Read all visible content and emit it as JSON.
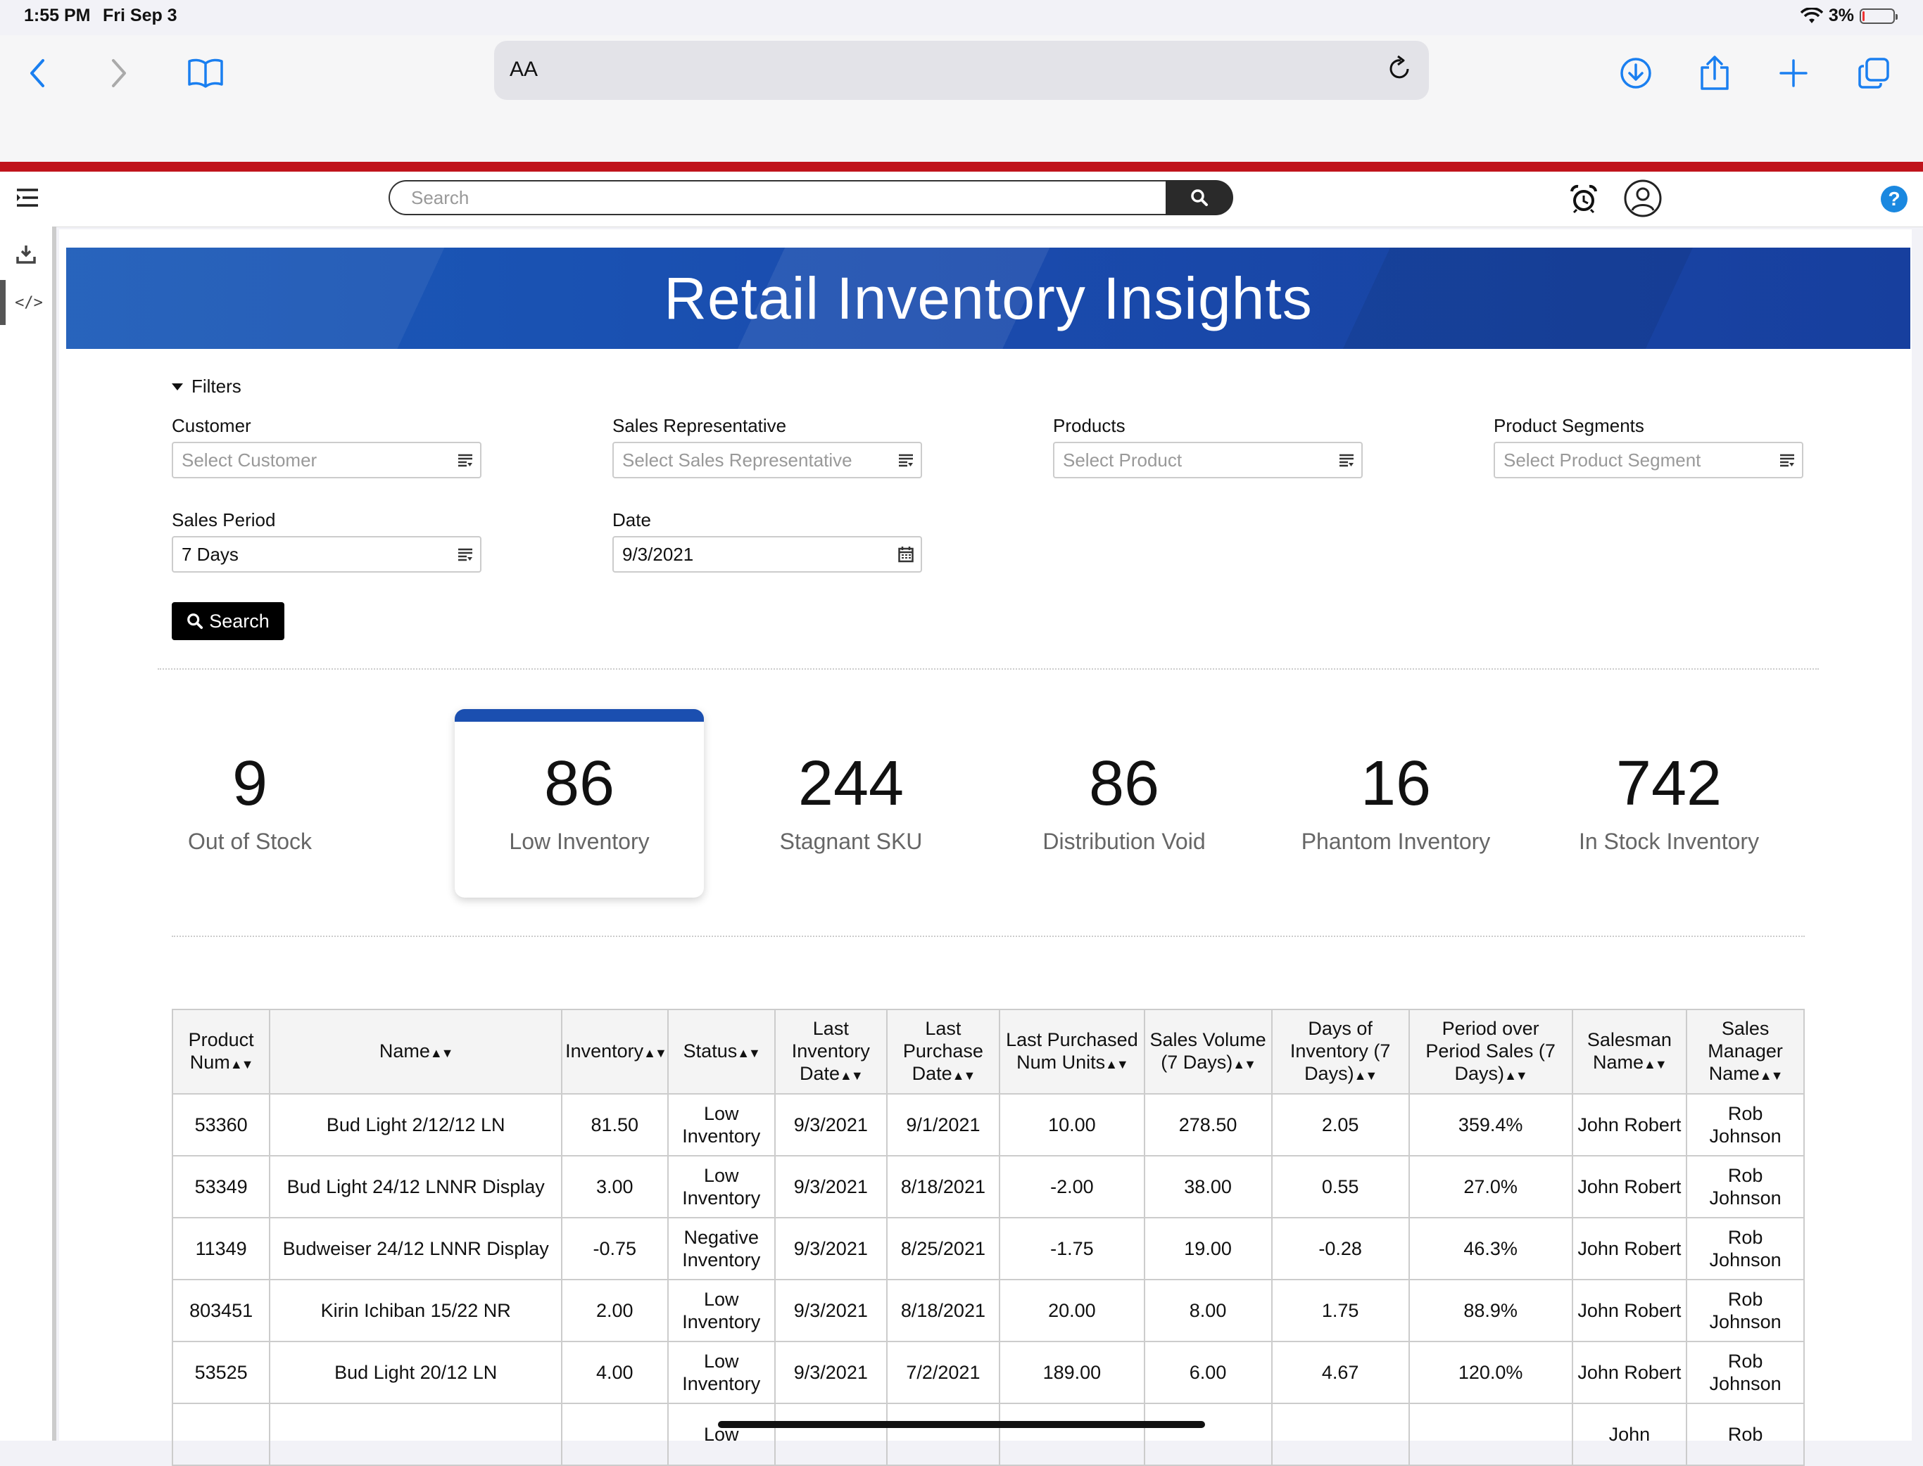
{
  "status_bar": {
    "time": "1:55 PM",
    "date": "Fri Sep 3",
    "battery": "3%"
  },
  "safari": {
    "aa_label": "AA"
  },
  "header": {
    "search_placeholder": "Search"
  },
  "banner": {
    "title": "Retail Inventory Insights"
  },
  "filters": {
    "toggle_label": "Filters",
    "customer": {
      "label": "Customer",
      "placeholder": "Select Customer"
    },
    "sales_rep": {
      "label": "Sales Representative",
      "placeholder": "Select Sales Representative"
    },
    "products": {
      "label": "Products",
      "placeholder": "Select Product"
    },
    "segments": {
      "label": "Product Segments",
      "placeholder": "Select Product Segment"
    },
    "sales_period": {
      "label": "Sales Period",
      "value": "7 Days"
    },
    "date": {
      "label": "Date",
      "value": "9/3/2021"
    },
    "search_label": "Search"
  },
  "kpis": [
    {
      "value": "9",
      "label": "Out of Stock"
    },
    {
      "value": "86",
      "label": "Low Inventory"
    },
    {
      "value": "244",
      "label": "Stagnant SKU"
    },
    {
      "value": "86",
      "label": "Distribution Void"
    },
    {
      "value": "16",
      "label": "Phantom Inventory"
    },
    {
      "value": "742",
      "label": "In Stock Inventory"
    }
  ],
  "table": {
    "columns": [
      "Product Num",
      "Name",
      "Inventory",
      "Status",
      "Last Inventory Date",
      "Last Purchase Date",
      "Last Purchased Num Units",
      "Sales Volume (7 Days)",
      "Days of Inventory (7 Days)",
      "Period over Period Sales (7 Days)",
      "Salesman Name",
      "Sales Manager Name"
    ],
    "rows": [
      [
        "53360",
        "Bud Light 2/12/12 LN",
        "81.50",
        "Low Inventory",
        "9/3/2021",
        "9/1/2021",
        "10.00",
        "278.50",
        "2.05",
        "359.4%",
        "John Robert",
        "Rob Johnson"
      ],
      [
        "53349",
        "Bud Light 24/12 LNNR Display",
        "3.00",
        "Low Inventory",
        "9/3/2021",
        "8/18/2021",
        "-2.00",
        "38.00",
        "0.55",
        "27.0%",
        "John Robert",
        "Rob Johnson"
      ],
      [
        "11349",
        "Budweiser 24/12 LNNR Display",
        "-0.75",
        "Negative Inventory",
        "9/3/2021",
        "8/25/2021",
        "-1.75",
        "19.00",
        "-0.28",
        "46.3%",
        "John Robert",
        "Rob Johnson"
      ],
      [
        "803451",
        "Kirin Ichiban 15/22 NR",
        "2.00",
        "Low Inventory",
        "9/3/2021",
        "8/18/2021",
        "20.00",
        "8.00",
        "1.75",
        "88.9%",
        "John Robert",
        "Rob Johnson"
      ],
      [
        "53525",
        "Bud Light 20/12 LN",
        "4.00",
        "Low Inventory",
        "9/3/2021",
        "7/2/2021",
        "189.00",
        "6.00",
        "4.67",
        "120.0%",
        "John Robert",
        "Rob Johnson"
      ],
      [
        "",
        "",
        "",
        "Low",
        "",
        "",
        "",
        "",
        "",
        "",
        "John",
        "Rob"
      ]
    ]
  }
}
